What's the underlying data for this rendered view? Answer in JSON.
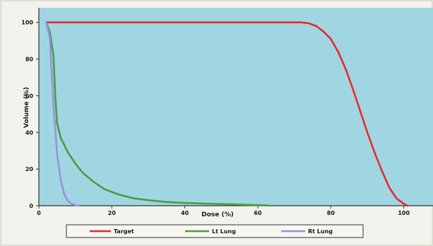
{
  "chart_data": {
    "type": "line",
    "title": "",
    "xlabel": "Dose (%)",
    "ylabel": "Volume (%)",
    "xlim": [
      0,
      108
    ],
    "ylim": [
      0,
      108
    ],
    "x_ticks": [
      0,
      20,
      40,
      60,
      80,
      100
    ],
    "y_ticks": [
      0,
      20,
      40,
      60,
      80,
      100
    ],
    "grid": false,
    "plot_background": "#9fd6e2",
    "legend_placement": "bottom",
    "series": [
      {
        "name": "Target",
        "color": "#e52b2b",
        "points": [
          [
            2,
            100
          ],
          [
            10,
            100
          ],
          [
            20,
            100
          ],
          [
            30,
            100
          ],
          [
            40,
            100
          ],
          [
            50,
            100
          ],
          [
            60,
            100
          ],
          [
            70,
            100
          ],
          [
            72,
            100
          ],
          [
            74,
            99.5
          ],
          [
            76,
            98
          ],
          [
            78,
            95
          ],
          [
            80,
            91
          ],
          [
            82,
            84
          ],
          [
            84,
            75
          ],
          [
            86,
            64
          ],
          [
            88,
            52
          ],
          [
            90,
            40
          ],
          [
            92,
            29
          ],
          [
            94,
            19
          ],
          [
            96,
            10
          ],
          [
            98,
            4
          ],
          [
            100,
            1
          ],
          [
            101,
            0
          ]
        ]
      },
      {
        "name": "Lt Lung",
        "color": "#4a9e3a",
        "points": [
          [
            2,
            100
          ],
          [
            3,
            95
          ],
          [
            4,
            82
          ],
          [
            4.5,
            60
          ],
          [
            5,
            45
          ],
          [
            6,
            37
          ],
          [
            8,
            29
          ],
          [
            10,
            23
          ],
          [
            12,
            18
          ],
          [
            15,
            13
          ],
          [
            18,
            9
          ],
          [
            22,
            6
          ],
          [
            26,
            4
          ],
          [
            30,
            3
          ],
          [
            35,
            2
          ],
          [
            40,
            1.5
          ],
          [
            45,
            1.2
          ],
          [
            50,
            0.9
          ],
          [
            55,
            0.6
          ],
          [
            60,
            0.3
          ],
          [
            63,
            0.1
          ]
        ]
      },
      {
        "name": "Rt Lung",
        "color": "#9b8fe0",
        "points": [
          [
            2,
            100
          ],
          [
            3,
            92
          ],
          [
            4,
            55
          ],
          [
            5,
            28
          ],
          [
            6,
            14
          ],
          [
            7,
            6
          ],
          [
            8,
            2.5
          ],
          [
            9,
            1
          ],
          [
            10,
            0.3
          ],
          [
            11,
            0
          ]
        ]
      }
    ]
  },
  "axes": {
    "x_title": "Dose (%)",
    "y_title": "Volume (%)",
    "x_tick_labels": [
      "0",
      "20",
      "40",
      "60",
      "80",
      "100"
    ],
    "y_tick_labels": [
      "0",
      "20",
      "40",
      "60",
      "80",
      "100"
    ]
  },
  "legend": {
    "items": [
      {
        "label": "Target",
        "color": "#e52b2b"
      },
      {
        "label": "Lt Lung",
        "color": "#4a9e3a"
      },
      {
        "label": "Rt Lung",
        "color": "#9b8fe0"
      }
    ]
  }
}
